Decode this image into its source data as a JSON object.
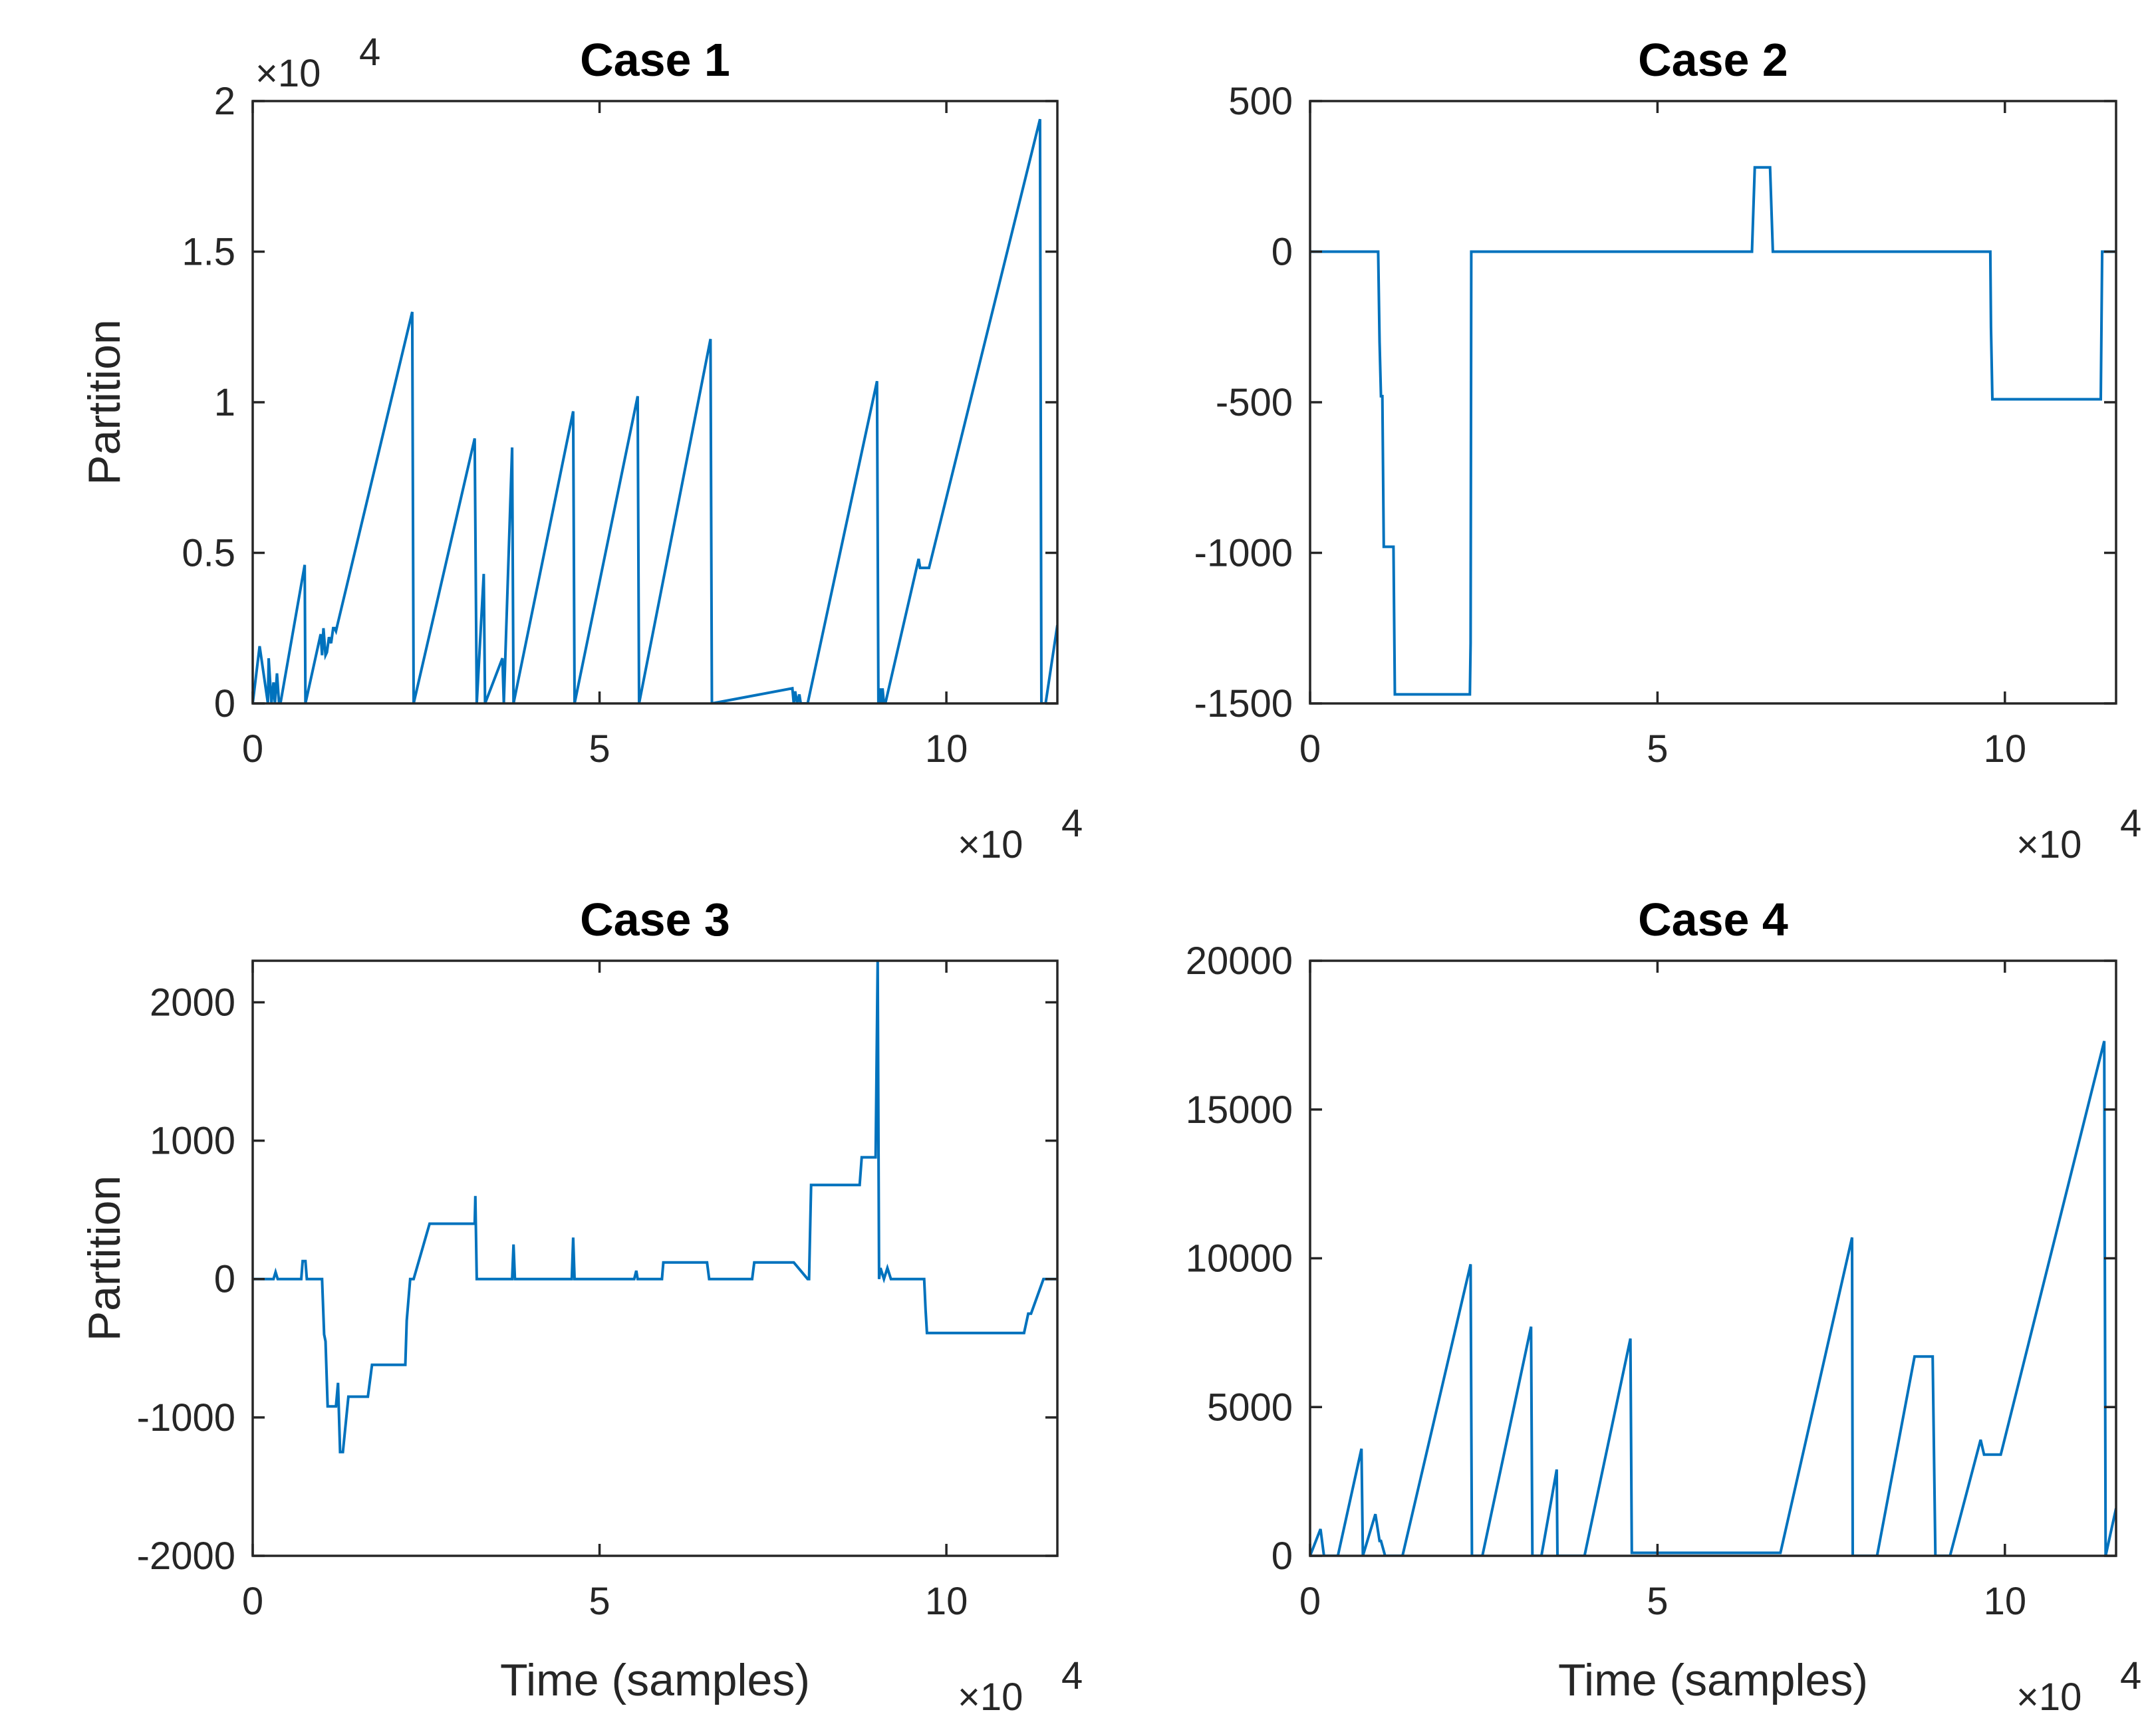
{
  "colors": {
    "line": "#0072BD",
    "axis": "#262626",
    "background": "#ffffff"
  },
  "chart_data": [
    {
      "type": "line",
      "title": "Case 1",
      "xlabel": "",
      "ylabel": "Partition",
      "xlim": [
        0,
        116000
      ],
      "ylim": [
        0,
        20000
      ],
      "xticks": [
        0,
        50000,
        100000
      ],
      "xtick_labels": [
        "0",
        "5",
        "10"
      ],
      "yticks": [
        0,
        5000,
        10000,
        15000,
        20000
      ],
      "ytick_labels": [
        "0",
        "0.5",
        "1",
        "1.5",
        "2"
      ],
      "x_exponent": "×10",
      "x_exponent_power": "4",
      "y_exponent": "×10",
      "y_exponent_power": "4",
      "series": [
        {
          "name": "Case 1",
          "x": [
            0,
            1000,
            2200,
            2300,
            2700,
            3000,
            3200,
            3500,
            3800,
            4000,
            7500,
            7600,
            9800,
            10000,
            10200,
            10500,
            10700,
            11000,
            11300,
            11600,
            11800,
            12000,
            12200,
            23000,
            23200,
            32000,
            32300,
            33300,
            33500,
            36000,
            36200,
            37400,
            37600,
            46200,
            46400,
            55500,
            55700,
            66000,
            66200,
            77800,
            78000,
            78200,
            78500,
            78800,
            79000,
            80000,
            90000,
            90200,
            90400,
            90600,
            90800,
            91000,
            91200,
            96000,
            96200,
            97500,
            113500,
            113700,
            114300,
            116000
          ],
          "y": [
            0,
            1900,
            0,
            1500,
            0,
            700,
            0,
            1000,
            0,
            0,
            4600,
            0,
            2300,
            1600,
            2500,
            1600,
            1700,
            2200,
            2000,
            2500,
            2500,
            2400,
            2600,
            13000,
            0,
            8800,
            0,
            4300,
            0,
            1500,
            0,
            8500,
            0,
            9700,
            0,
            10200,
            0,
            12100,
            0,
            500,
            0,
            400,
            0,
            300,
            0,
            0,
            10700,
            0,
            500,
            0,
            500,
            0,
            0,
            4800,
            4500,
            4500,
            19400,
            0,
            0,
            2600
          ]
        }
      ]
    },
    {
      "type": "line",
      "title": "Case 2",
      "xlabel": "",
      "ylabel": "",
      "xlim": [
        0,
        116000
      ],
      "ylim": [
        -1500,
        500
      ],
      "xticks": [
        0,
        50000,
        100000
      ],
      "xtick_labels": [
        "0",
        "5",
        "10"
      ],
      "yticks": [
        -1500,
        -1000,
        -500,
        0,
        500
      ],
      "ytick_labels": [
        "-1500",
        "-1000",
        "-500",
        "0",
        "500"
      ],
      "x_exponent": "×10",
      "x_exponent_power": "4",
      "series": [
        {
          "name": "Case 2",
          "x": [
            0,
            9800,
            10000,
            10200,
            10400,
            10600,
            10800,
            12000,
            12200,
            23000,
            23100,
            23200,
            63600,
            64000,
            66200,
            66600,
            97900,
            98000,
            98200,
            113800,
            114000,
            116000
          ],
          "y": [
            0,
            0,
            -300,
            -480,
            -480,
            -980,
            -980,
            -980,
            -1470,
            -1470,
            -1300,
            0,
            0,
            280,
            280,
            0,
            0,
            -250,
            -490,
            -490,
            0,
            0
          ]
        }
      ]
    },
    {
      "type": "line",
      "title": "Case 3",
      "xlabel": "Time (samples)",
      "ylabel": "Partition",
      "xlim": [
        0,
        116000
      ],
      "ylim": [
        -2000,
        2300
      ],
      "xticks": [
        0,
        50000,
        100000
      ],
      "xtick_labels": [
        "0",
        "5",
        "10"
      ],
      "yticks": [
        -2000,
        -1000,
        0,
        1000,
        2000
      ],
      "ytick_labels": [
        "-2000",
        "-1000",
        "0",
        "1000",
        "2000"
      ],
      "x_exponent": "×10",
      "x_exponent_power": "4",
      "series": [
        {
          "name": "Case 3",
          "x": [
            0,
            3000,
            3300,
            3600,
            7000,
            7200,
            7600,
            7800,
            10000,
            10300,
            10500,
            10800,
            11000,
            12000,
            12300,
            12600,
            13000,
            13800,
            14000,
            16600,
            17000,
            17200,
            19000,
            22000,
            22200,
            22700,
            23200,
            25500,
            25800,
            32000,
            32100,
            32300,
            37400,
            37600,
            37800,
            46000,
            46200,
            46400,
            55000,
            55300,
            55500,
            59000,
            59200,
            65500,
            65800,
            72000,
            72300,
            78000,
            80000,
            80200,
            80500,
            83500,
            84000,
            87500,
            87800,
            89800,
            90100,
            90300,
            90500,
            91000,
            91500,
            92000,
            96800,
            97000,
            97200,
            111200,
            111800,
            112200,
            114000,
            116000
          ],
          "y": [
            0,
            0,
            50,
            0,
            0,
            130,
            130,
            0,
            0,
            -400,
            -450,
            -920,
            -920,
            -920,
            -750,
            -1250,
            -1250,
            -850,
            -850,
            -850,
            -700,
            -620,
            -620,
            -620,
            -300,
            0,
            0,
            400,
            400,
            400,
            600,
            0,
            0,
            250,
            0,
            0,
            300,
            0,
            0,
            60,
            0,
            0,
            120,
            120,
            0,
            0,
            120,
            120,
            0,
            0,
            680,
            680,
            680,
            680,
            880,
            880,
            2300,
            0,
            80,
            0,
            80,
            0,
            0,
            -220,
            -390,
            -390,
            -250,
            -250,
            0,
            0
          ]
        }
      ]
    },
    {
      "type": "line",
      "title": "Case 4",
      "xlabel": "Time (samples)",
      "ylabel": "",
      "xlim": [
        0,
        116000
      ],
      "ylim": [
        0,
        20000
      ],
      "xticks": [
        0,
        50000,
        100000
      ],
      "xtick_labels": [
        "0",
        "5",
        "10"
      ],
      "yticks": [
        0,
        5000,
        10000,
        15000,
        20000
      ],
      "ytick_labels": [
        "0",
        "5000",
        "10000",
        "15000",
        "20000"
      ],
      "x_exponent": "×10",
      "x_exponent_power": "4",
      "series": [
        {
          "name": "Case 4",
          "x": [
            0,
            1500,
            2000,
            4000,
            7400,
            7600,
            9400,
            10000,
            10200,
            10800,
            12000,
            12600,
            13300,
            23100,
            23300,
            24800,
            31800,
            32000,
            33300,
            35500,
            35600,
            37300,
            39500,
            46100,
            46300,
            67700,
            78000,
            78100,
            81600,
            87000,
            89600,
            90000,
            91400,
            92100,
            96500,
            97000,
            97200,
            99400,
            114300,
            114500,
            116000
          ],
          "y": [
            0,
            900,
            0,
            0,
            3600,
            0,
            1400,
            500,
            500,
            0,
            0,
            0,
            0,
            9800,
            0,
            0,
            7700,
            0,
            0,
            2900,
            0,
            0,
            0,
            7300,
            100,
            100,
            10700,
            0,
            0,
            6700,
            6700,
            0,
            0,
            0,
            3900,
            3400,
            3400,
            3400,
            17300,
            0,
            1600
          ]
        }
      ]
    }
  ]
}
